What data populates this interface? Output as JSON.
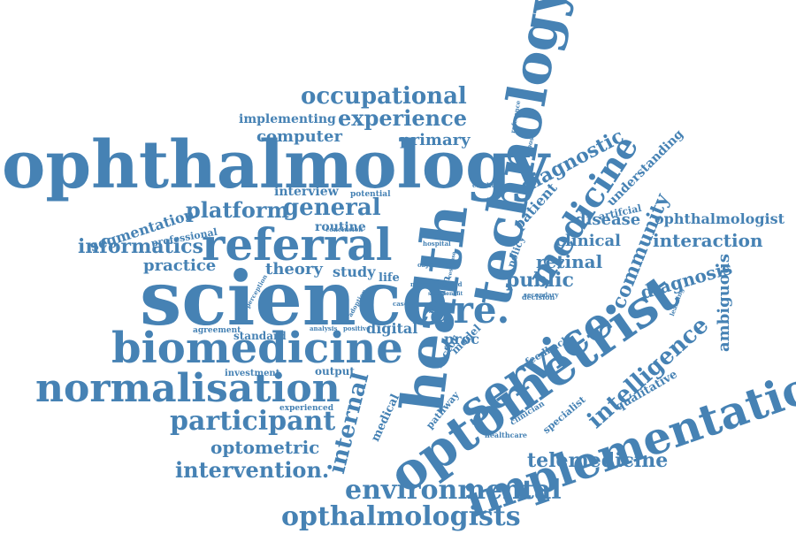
{
  "colors": {
    "text": "#4682b4",
    "background": "#ffffff"
  },
  "words": {
    "ophthalmology": "ophthalmology",
    "science": "science",
    "health": "health",
    "technology": "technology",
    "optometrist": "optometrist",
    "implementation": "implementation",
    "referral": "referral",
    "biomedicine": "biomedicine",
    "normalisation": "normalisation",
    "service": "service.",
    "medicine": "medicine",
    "care": "care.",
    "environmental": "environmental",
    "opthalmologists": "opthalmologists",
    "participant": "participant",
    "occupational": "occupational",
    "experience": "experience",
    "intervention": "intervention.",
    "internal": "internal",
    "intelligence": "intelligence",
    "telemedicine": "telemedicine",
    "community": "community",
    "general": "general",
    "platform": "platform",
    "informatics": "informatics",
    "diagnostic": "diagnostic",
    "optometric": "optometric",
    "public": "public",
    "retinal": "retinal",
    "diagnosis": "diagnosis",
    "interaction": "interaction",
    "ophthalmologist": "ophthalmologist",
    "clinical": "clinical",
    "disease": "disease",
    "understanding": "understanding",
    "ambiguous": "ambiguous",
    "computer": "computer",
    "primary": "primary",
    "implementing": "implementing",
    "segmentation": "segmentation",
    "practice": "practice",
    "theory": "theory",
    "study": "study",
    "routine": "routine",
    "interview": "interview",
    "digital": "digital",
    "patient": "patient",
    "proc": "proc",
    "qualitative": "qualitative",
    "professional": "professional",
    "artifcial": "artifcial",
    "medical": "medical",
    "life": "life",
    "human": "human",
    "policy": "policy",
    "model": "model",
    "factor": "factor",
    "pathway": "pathway",
    "specialist": "specialist",
    "feedback": "feedback",
    "clinician": "clinician",
    "healthcare": "healthcare",
    "standard": "standard",
    "output": "output",
    "investment": "investment",
    "agreement": "agreement",
    "experienced": "experienced",
    "analysis": "analysis",
    "positive": "positive",
    "adoption": "adoption",
    "perception": "perception",
    "case": "case",
    "potential": "potential",
    "conclusion": "conclusion",
    "condition": "condition",
    "hospital": "hospital",
    "objective": "objective",
    "more": "more",
    "involved": "involved",
    "decision": "decision",
    "secondary": "secondary",
    "learning": "learning",
    "reference": "reference",
    "exposed": "exposed",
    "benefit": "benefit",
    "response": "response",
    "face": "face",
    "sample": "sample"
  }
}
